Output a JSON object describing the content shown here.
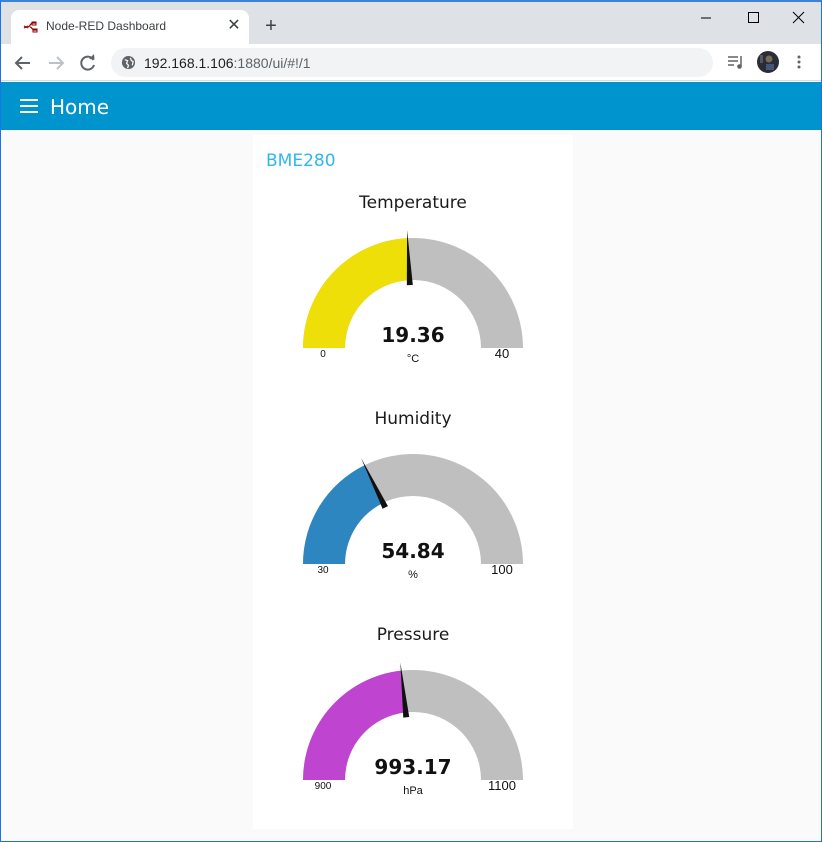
{
  "browser": {
    "tab_title": "Node-RED Dashboard",
    "url_host": "192.168.1.106",
    "url_rest": ":1880/ui/#!/1"
  },
  "appbar": {
    "title": "Home",
    "color": "#0094ce"
  },
  "group": {
    "title": "BME280",
    "gauges": [
      {
        "label": "Temperature",
        "value": "19.36",
        "units": "°C",
        "min": "0",
        "max": "40",
        "numeric": 19.36,
        "min_n": 0,
        "max_n": 40,
        "color": "#eedf08"
      },
      {
        "label": "Humidity",
        "value": "54.84",
        "units": "%",
        "min": "30",
        "max": "100",
        "numeric": 54.84,
        "min_n": 30,
        "max_n": 100,
        "color": "#2e86c1"
      },
      {
        "label": "Pressure",
        "value": "993.17",
        "units": "hPa",
        "min": "900",
        "max": "1100",
        "numeric": 993.17,
        "min_n": 900,
        "max_n": 1100,
        "color": "#bf45d1"
      }
    ]
  }
}
